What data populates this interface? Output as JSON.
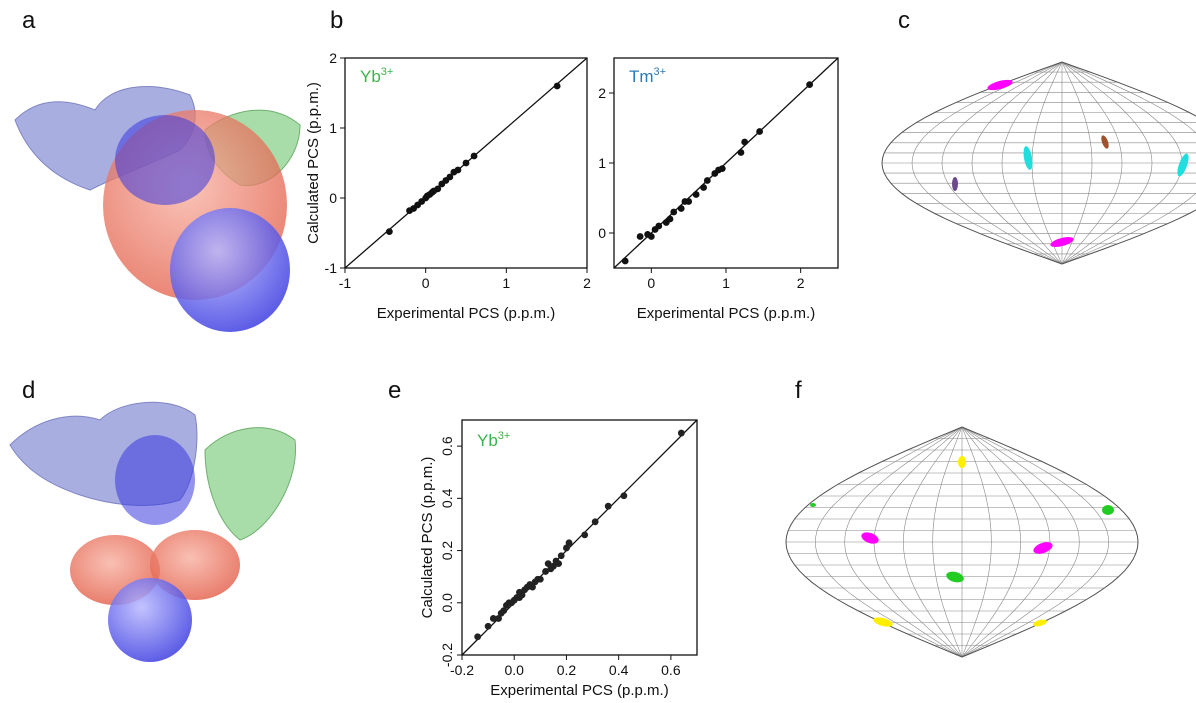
{
  "panel_labels": [
    "a",
    "b",
    "c",
    "d",
    "e",
    "f"
  ],
  "chart_data": [
    {
      "type": "scatter",
      "x_label": "Experimental PCS (p.p.m.)",
      "y_label": "Calculated PCS (p.p.m.)",
      "annotation": {
        "text": "Yb",
        "superscript": "3+",
        "color": "#3cb44b"
      },
      "xlim": [
        -1,
        2
      ],
      "ylim": [
        -1,
        2
      ],
      "xticks": [
        -1,
        0,
        1,
        2
      ],
      "yticks": [
        -1,
        0,
        1,
        2
      ],
      "color": "#111111",
      "x": [
        -0.45,
        -0.2,
        -0.15,
        -0.1,
        -0.05,
        0,
        0.02,
        0.05,
        0.08,
        0.1,
        0.15,
        0.2,
        0.25,
        0.3,
        0.35,
        0.4,
        0.5,
        0.6,
        1.63
      ],
      "values": [
        -0.48,
        -0.18,
        -0.15,
        -0.1,
        -0.05,
        0,
        0.03,
        0.05,
        0.08,
        0.1,
        0.13,
        0.2,
        0.25,
        0.3,
        0.37,
        0.4,
        0.5,
        0.6,
        1.6
      ]
    },
    {
      "type": "scatter",
      "x_label": "Experimental PCS (p.p.m.)",
      "annotation": {
        "text": "Tm",
        "superscript": "3+",
        "color": "#2a7ab8"
      },
      "xlim": [
        -0.5,
        2.5
      ],
      "ylim": [
        -0.5,
        2.5
      ],
      "xticks": [
        0,
        1,
        2
      ],
      "yticks": [
        0,
        1,
        2
      ],
      "color": "#111111",
      "x": [
        -0.35,
        -0.15,
        -0.05,
        0,
        0.05,
        0.1,
        0.2,
        0.25,
        0.3,
        0.4,
        0.45,
        0.5,
        0.6,
        0.7,
        0.75,
        0.85,
        0.9,
        0.95,
        1.2,
        1.25,
        1.45,
        2.12
      ],
      "values": [
        -0.4,
        -0.05,
        -0.02,
        -0.05,
        0.05,
        0.1,
        0.15,
        0.2,
        0.3,
        0.35,
        0.45,
        0.45,
        0.55,
        0.65,
        0.75,
        0.85,
        0.9,
        0.92,
        1.15,
        1.3,
        1.45,
        2.12
      ]
    },
    {
      "type": "scatter",
      "x_label": "Experimental PCS (p.p.m.)",
      "y_label": "Calculated PCS (p.p.m.)",
      "annotation": {
        "text": "Yb",
        "superscript": "3+",
        "color": "#3cb44b"
      },
      "xlim": [
        -0.2,
        0.7
      ],
      "ylim": [
        -0.2,
        0.7
      ],
      "xticks": [
        -0.2,
        {
          "value": 0,
          "label": "0.0"
        },
        0.2,
        0.4,
        0.6
      ],
      "yticks": [
        -0.2,
        {
          "value": 0,
          "label": "0.0"
        },
        0.2,
        0.4,
        0.6
      ],
      "color": "#222222",
      "x": [
        -0.14,
        -0.1,
        -0.08,
        -0.06,
        -0.05,
        -0.04,
        -0.03,
        -0.02,
        -0.01,
        0,
        0.01,
        0.02,
        0.02,
        0.03,
        0.04,
        0.05,
        0.06,
        0.07,
        0.08,
        0.09,
        0.1,
        0.12,
        0.13,
        0.14,
        0.15,
        0.16,
        0.17,
        0.18,
        0.2,
        0.21,
        0.27,
        0.31,
        0.36,
        0.42,
        0.64
      ],
      "values": [
        -0.13,
        -0.09,
        -0.06,
        -0.06,
        -0.04,
        -0.03,
        -0.01,
        0,
        0,
        0.01,
        0.02,
        0.02,
        0.04,
        0.03,
        0.05,
        0.06,
        0.07,
        0.06,
        0.08,
        0.09,
        0.09,
        0.12,
        0.15,
        0.13,
        0.14,
        0.16,
        0.15,
        0.18,
        0.21,
        0.23,
        0.26,
        0.31,
        0.37,
        0.41,
        0.65
      ]
    }
  ]
}
